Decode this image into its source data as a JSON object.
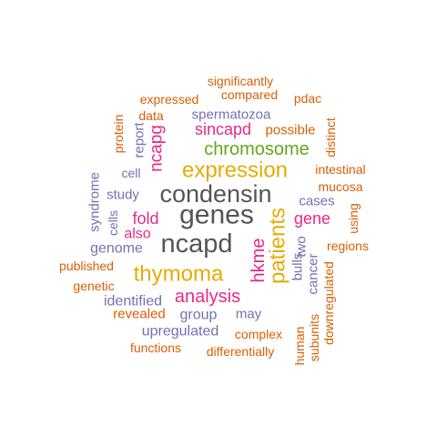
{
  "colors": {
    "background": "#ffffff",
    "orange": "#d95f02",
    "purple": "#7570b3",
    "magenta": "#e7298a",
    "green": "#66a61e",
    "gold": "#e6ab02",
    "gray": "#555555"
  },
  "words": [
    {
      "text": "significantly",
      "color": "orange"
    },
    {
      "text": "expressed",
      "color": "orange"
    },
    {
      "text": "compared",
      "color": "orange"
    },
    {
      "text": "pdac",
      "color": "orange"
    },
    {
      "text": "data",
      "color": "orange"
    },
    {
      "text": "spermatozoa",
      "color": "purple"
    },
    {
      "text": "possible",
      "color": "orange"
    },
    {
      "text": "protein",
      "color": "orange"
    },
    {
      "text": "report",
      "color": "purple"
    },
    {
      "text": "ncapg",
      "color": "magenta"
    },
    {
      "text": "sincapd",
      "color": "magenta"
    },
    {
      "text": "distinct",
      "color": "orange"
    },
    {
      "text": "chromosome",
      "color": "green"
    },
    {
      "text": "cell",
      "color": "purple"
    },
    {
      "text": "expression",
      "color": "gold"
    },
    {
      "text": "intestinal",
      "color": "orange"
    },
    {
      "text": "syndrome",
      "color": "purple"
    },
    {
      "text": "mucosa",
      "color": "orange"
    },
    {
      "text": "study",
      "color": "purple"
    },
    {
      "text": "condensin",
      "color": "gray"
    },
    {
      "text": "cases",
      "color": "purple"
    },
    {
      "text": "cells",
      "color": "purple"
    },
    {
      "text": "genes",
      "color": "gray"
    },
    {
      "text": "using",
      "color": "orange"
    },
    {
      "text": "fold",
      "color": "magenta"
    },
    {
      "text": "gene",
      "color": "magenta"
    },
    {
      "text": "also",
      "color": "magenta"
    },
    {
      "text": "patients",
      "color": "gold"
    },
    {
      "text": "ncapd",
      "color": "gray"
    },
    {
      "text": "genome",
      "color": "purple"
    },
    {
      "text": "regions",
      "color": "orange"
    },
    {
      "text": "hkme",
      "color": "magenta"
    },
    {
      "text": "bulls",
      "color": "purple"
    },
    {
      "text": "two",
      "color": "purple"
    },
    {
      "text": "cancer",
      "color": "purple"
    },
    {
      "text": "published",
      "color": "orange"
    },
    {
      "text": "thymoma",
      "color": "gold"
    },
    {
      "text": "genetic",
      "color": "orange"
    },
    {
      "text": "analysis",
      "color": "magenta"
    },
    {
      "text": "identified",
      "color": "purple"
    },
    {
      "text": "downregulated",
      "color": "orange"
    },
    {
      "text": "revealed",
      "color": "orange"
    },
    {
      "text": "group",
      "color": "purple"
    },
    {
      "text": "may",
      "color": "purple"
    },
    {
      "text": "upregulated",
      "color": "purple"
    },
    {
      "text": "complex",
      "color": "orange"
    },
    {
      "text": "human",
      "color": "orange"
    },
    {
      "text": "subunits",
      "color": "orange"
    },
    {
      "text": "functions",
      "color": "orange"
    },
    {
      "text": "differentially",
      "color": "orange"
    }
  ]
}
